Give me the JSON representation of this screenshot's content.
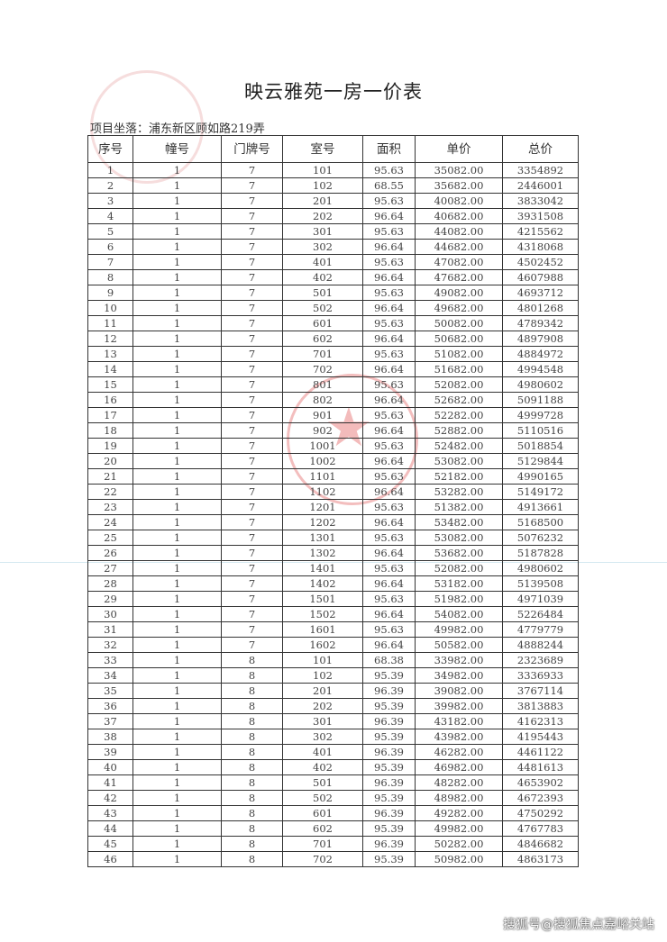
{
  "document": {
    "title": "映云雅苑一房一价表",
    "location": "项目坐落：浦东新区顾如路219弄",
    "watermark": "搜狐号@搜狐焦点嘉峪关站"
  },
  "table": {
    "headers": [
      "序号",
      "幢号",
      "门牌号",
      "室号",
      "面积",
      "单价",
      "总价"
    ],
    "rows": [
      [
        "1",
        "1",
        "7",
        "101",
        "95.63",
        "35082.00",
        "3354892"
      ],
      [
        "2",
        "1",
        "7",
        "102",
        "68.55",
        "35682.00",
        "2446001"
      ],
      [
        "3",
        "1",
        "7",
        "201",
        "95.63",
        "40082.00",
        "3833042"
      ],
      [
        "4",
        "1",
        "7",
        "202",
        "96.64",
        "40682.00",
        "3931508"
      ],
      [
        "5",
        "1",
        "7",
        "301",
        "95.63",
        "44082.00",
        "4215562"
      ],
      [
        "6",
        "1",
        "7",
        "302",
        "96.64",
        "44682.00",
        "4318068"
      ],
      [
        "7",
        "1",
        "7",
        "401",
        "95.63",
        "47082.00",
        "4502452"
      ],
      [
        "8",
        "1",
        "7",
        "402",
        "96.64",
        "47682.00",
        "4607988"
      ],
      [
        "9",
        "1",
        "7",
        "501",
        "95.63",
        "49082.00",
        "4693712"
      ],
      [
        "10",
        "1",
        "7",
        "502",
        "96.64",
        "49682.00",
        "4801268"
      ],
      [
        "11",
        "1",
        "7",
        "601",
        "95.63",
        "50082.00",
        "4789342"
      ],
      [
        "12",
        "1",
        "7",
        "602",
        "96.64",
        "50682.00",
        "4897908"
      ],
      [
        "13",
        "1",
        "7",
        "701",
        "95.63",
        "51082.00",
        "4884972"
      ],
      [
        "14",
        "1",
        "7",
        "702",
        "96.64",
        "51682.00",
        "4994548"
      ],
      [
        "15",
        "1",
        "7",
        "801",
        "95.63",
        "52082.00",
        "4980602"
      ],
      [
        "16",
        "1",
        "7",
        "802",
        "96.64",
        "52682.00",
        "5091188"
      ],
      [
        "17",
        "1",
        "7",
        "901",
        "95.63",
        "52282.00",
        "4999728"
      ],
      [
        "18",
        "1",
        "7",
        "902",
        "96.64",
        "52882.00",
        "5110516"
      ],
      [
        "19",
        "1",
        "7",
        "1001",
        "95.63",
        "52482.00",
        "5018854"
      ],
      [
        "20",
        "1",
        "7",
        "1002",
        "96.64",
        "53082.00",
        "5129844"
      ],
      [
        "21",
        "1",
        "7",
        "1101",
        "95.63",
        "52182.00",
        "4990165"
      ],
      [
        "22",
        "1",
        "7",
        "1102",
        "96.64",
        "53282.00",
        "5149172"
      ],
      [
        "23",
        "1",
        "7",
        "1201",
        "95.63",
        "51382.00",
        "4913661"
      ],
      [
        "24",
        "1",
        "7",
        "1202",
        "96.64",
        "53482.00",
        "5168500"
      ],
      [
        "25",
        "1",
        "7",
        "1301",
        "95.63",
        "53082.00",
        "5076232"
      ],
      [
        "26",
        "1",
        "7",
        "1302",
        "96.64",
        "53682.00",
        "5187828"
      ],
      [
        "27",
        "1",
        "7",
        "1401",
        "95.63",
        "52082.00",
        "4980602"
      ],
      [
        "28",
        "1",
        "7",
        "1402",
        "96.64",
        "53182.00",
        "5139508"
      ],
      [
        "29",
        "1",
        "7",
        "1501",
        "95.63",
        "51982.00",
        "4971039"
      ],
      [
        "30",
        "1",
        "7",
        "1502",
        "96.64",
        "54082.00",
        "5226484"
      ],
      [
        "31",
        "1",
        "7",
        "1601",
        "95.63",
        "49982.00",
        "4779779"
      ],
      [
        "32",
        "1",
        "7",
        "1602",
        "96.64",
        "50582.00",
        "4888244"
      ],
      [
        "33",
        "1",
        "8",
        "101",
        "68.38",
        "33982.00",
        "2323689"
      ],
      [
        "34",
        "1",
        "8",
        "102",
        "95.39",
        "34982.00",
        "3336933"
      ],
      [
        "35",
        "1",
        "8",
        "201",
        "96.39",
        "39082.00",
        "3767114"
      ],
      [
        "36",
        "1",
        "8",
        "202",
        "95.39",
        "39982.00",
        "3813883"
      ],
      [
        "37",
        "1",
        "8",
        "301",
        "96.39",
        "43182.00",
        "4162313"
      ],
      [
        "38",
        "1",
        "8",
        "302",
        "95.39",
        "43982.00",
        "4195443"
      ],
      [
        "39",
        "1",
        "8",
        "401",
        "96.39",
        "46282.00",
        "4461122"
      ],
      [
        "40",
        "1",
        "8",
        "402",
        "95.39",
        "46982.00",
        "4481613"
      ],
      [
        "41",
        "1",
        "8",
        "501",
        "96.39",
        "48282.00",
        "4653902"
      ],
      [
        "42",
        "1",
        "8",
        "502",
        "95.39",
        "48982.00",
        "4672393"
      ],
      [
        "43",
        "1",
        "8",
        "601",
        "96.39",
        "49282.00",
        "4750292"
      ],
      [
        "44",
        "1",
        "8",
        "602",
        "95.39",
        "49982.00",
        "4767783"
      ],
      [
        "45",
        "1",
        "8",
        "701",
        "96.39",
        "50282.00",
        "4846682"
      ],
      [
        "46",
        "1",
        "8",
        "702",
        "95.39",
        "50982.00",
        "4863173"
      ]
    ]
  },
  "colors": {
    "stamp": "#dc4646"
  }
}
